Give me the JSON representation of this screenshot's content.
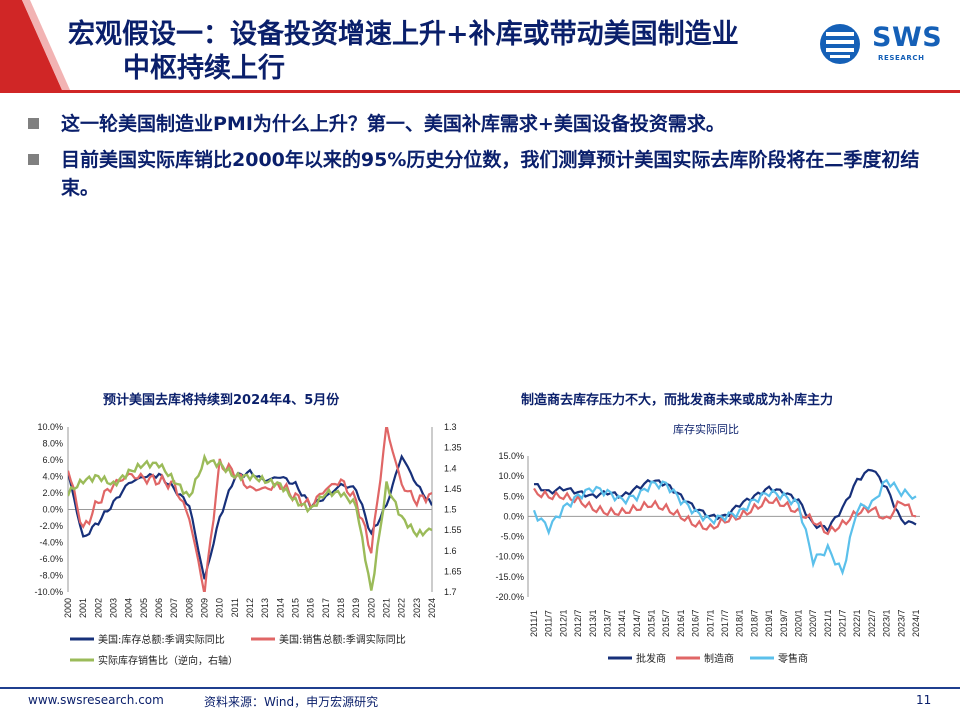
{
  "header": {
    "title_line1": "宏观假设一：设备投资增速上升+补库或带动美国制造业",
    "title_line2": "中枢持续上行",
    "logo_text": "SWS",
    "logo_sub": "RESEARCH",
    "accent_color": "#d02626"
  },
  "bullets": [
    "这一轮美国制造业PMI为什么上升？第一、美国补库需求+美国设备投资需求。",
    "目前美国实际库销比2000年以来的95%历史分位数，我们测算预计美国实际去库阶段将在二季度初结束。"
  ],
  "footer": {
    "url": "www.swsresearch.com",
    "source": "资料来源：Wind，申万宏源研究",
    "page": "11"
  },
  "chart_data": [
    {
      "type": "line",
      "title": "预计美国去库将持续到2024年4、5月份",
      "x": [
        "2000",
        "2001",
        "2002",
        "2003",
        "2004",
        "2005",
        "2006",
        "2007",
        "2008",
        "2009",
        "2010",
        "2011",
        "2012",
        "2013",
        "2014",
        "2015",
        "2016",
        "2017",
        "2018",
        "2019",
        "2020",
        "2021",
        "2022",
        "2023",
        "2024"
      ],
      "y_left": {
        "ticks": [
          "10.0%",
          "8.0%",
          "6.0%",
          "4.0%",
          "2.0%",
          "0.0%",
          "-2.0%",
          "-4.0%",
          "-6.0%",
          "-8.0%",
          "-10.0%"
        ],
        "range": [
          -10,
          10
        ]
      },
      "y_right": {
        "ticks": [
          "1.3",
          "1.35",
          "1.4",
          "1.45",
          "1.5",
          "1.55",
          "1.6",
          "1.65",
          "1.7"
        ],
        "range": [
          1.3,
          1.7
        ],
        "inverted": true
      },
      "series": [
        {
          "name": "美国:库存总额:季调实际同比",
          "color": "#17307a",
          "axis": "left",
          "values": [
            4.5,
            -3.5,
            -1.5,
            0.8,
            3.2,
            4.0,
            4.2,
            2.5,
            0.5,
            -8.5,
            -1.0,
            4.0,
            4.5,
            3.5,
            4.0,
            3.0,
            0.5,
            1.5,
            3.0,
            2.5,
            -3.0,
            0.5,
            6.5,
            3.0,
            0.5
          ]
        },
        {
          "name": "美国:销售总额:季调实际同比",
          "color": "#e06666",
          "axis": "left",
          "values": [
            5.0,
            -2.5,
            1.0,
            3.0,
            4.2,
            3.8,
            3.5,
            3.0,
            -1.0,
            -10.0,
            5.5,
            4.5,
            2.5,
            2.5,
            3.0,
            1.5,
            0.5,
            2.5,
            3.5,
            1.0,
            -5.0,
            10.0,
            3.0,
            1.0,
            2.0
          ]
        },
        {
          "name": "实际库存销售比（逆向，右轴）",
          "color": "#9bbb59",
          "axis": "right",
          "values": [
            1.46,
            1.43,
            1.42,
            1.44,
            1.41,
            1.39,
            1.39,
            1.43,
            1.47,
            1.38,
            1.39,
            1.42,
            1.42,
            1.43,
            1.44,
            1.48,
            1.5,
            1.46,
            1.46,
            1.49,
            1.7,
            1.44,
            1.52,
            1.56,
            1.55
          ]
        }
      ],
      "legend_position": "bottom"
    },
    {
      "type": "line",
      "title": "制造商去库存压力不大，而批发商未来或成为补库主力",
      "subtitle": "库存实际同比",
      "x": [
        "2011/1",
        "2011/7",
        "2012/1",
        "2012/7",
        "2013/1",
        "2013/7",
        "2014/1",
        "2014/7",
        "2015/1",
        "2015/7",
        "2016/1",
        "2016/7",
        "2017/1",
        "2017/7",
        "2018/1",
        "2018/7",
        "2019/1",
        "2019/7",
        "2020/1",
        "2020/7",
        "2021/1",
        "2021/7",
        "2022/1",
        "2022/7",
        "2023/1",
        "2023/7",
        "2024/1"
      ],
      "y": {
        "ticks": [
          "15.0%",
          "10.0%",
          "5.0%",
          "0.0%",
          "-5.0%",
          "-10.0%",
          "-15.0%",
          "-20.0%"
        ],
        "range": [
          -20,
          15
        ]
      },
      "series": [
        {
          "name": "批发商",
          "color": "#17307a",
          "values": [
            8,
            6,
            7,
            6,
            5,
            6,
            5,
            7,
            9,
            8,
            5,
            2,
            0,
            0,
            3,
            5,
            7,
            6,
            4,
            -2,
            -3,
            2,
            9,
            12,
            7,
            -1,
            -2
          ]
        },
        {
          "name": "制造商",
          "color": "#e06666",
          "values": [
            6,
            5,
            5,
            4,
            2,
            1,
            1,
            2,
            3,
            2,
            0,
            -2,
            -3,
            -1,
            0,
            2,
            4,
            3,
            1,
            -1,
            -4,
            -2,
            1,
            2,
            -1,
            4,
            0
          ]
        },
        {
          "name": "零售商",
          "color": "#5bc0eb",
          "values": [
            1,
            -3,
            2,
            5,
            7,
            6,
            4,
            5,
            8,
            8,
            4,
            1,
            -1,
            0,
            1,
            4,
            6,
            5,
            3,
            -11,
            -8,
            -14,
            2,
            3,
            9,
            6,
            5
          ]
        }
      ],
      "legend_position": "bottom"
    }
  ]
}
